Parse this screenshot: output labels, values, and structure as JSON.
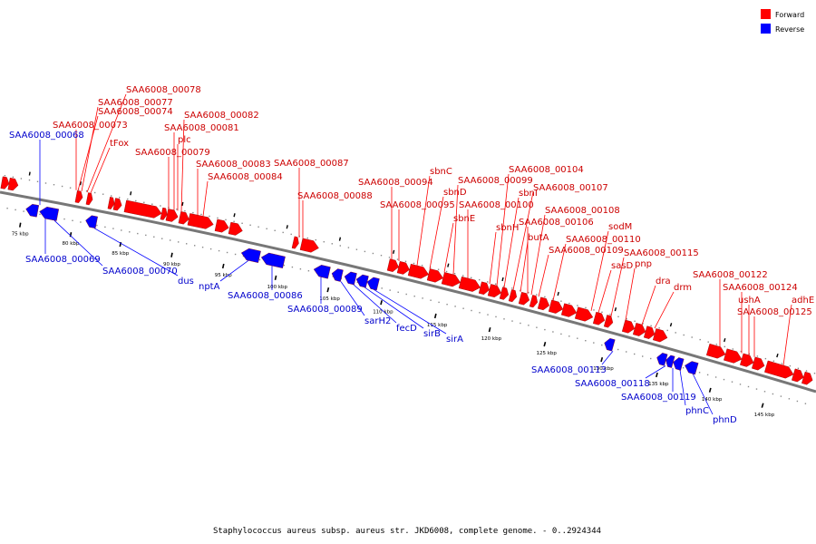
{
  "legend": [
    {
      "label": "Forward",
      "color": "#ff0000"
    },
    {
      "label": "Reverse",
      "color": "#0000ff"
    }
  ],
  "caption": "Staphylococcus aureus subsp. aureus str. JKD6008, complete genome. - 0..2924344",
  "colors": {
    "forward": "#ff0000",
    "reverse": "#0000ff",
    "forward_text": "#cc0000",
    "reverse_text": "#0000cc",
    "backbone": "#777777"
  },
  "ticks": [
    "75 kbp",
    "80 kbp",
    "85 kbp",
    "90 kbp",
    "95 kbp",
    "100 kbp",
    "105 kbp",
    "110 kbp",
    "115 kbp",
    "120 kbp",
    "125 kbp",
    "130 kbp",
    "135 kbp",
    "140 kbp",
    "145 kbp"
  ],
  "forward_genes": [
    "SAA6008_00078",
    "SAA6008_00077",
    "SAA6008_00074",
    "SAA6008_00073",
    "tFox",
    "SAA6008_00082",
    "SAA6008_00081",
    "plc",
    "SAA6008_00079",
    "SAA6008_00083",
    "SAA6008_00084",
    "SAA6008_00087",
    "SAA6008_00088",
    "SAA6008_00094",
    "SAA6008_00095",
    "sbnC",
    "sbnD",
    "sbnE",
    "SAA6008_00099",
    "SAA6008_00100",
    "SAA6008_00104",
    "sbnI",
    "sbnH",
    "SAA6008_00107",
    "SAA6008_00108",
    "butA",
    "SAA6008_00106",
    "sodM",
    "SAA6008_00110",
    "SAA6008_00109",
    "SAA6008_00115",
    "sasD",
    "pnp",
    "dra",
    "drm",
    "SAA6008_00122",
    "SAA6008_00124",
    "ushA",
    "SAA6008_00125",
    "adhE"
  ],
  "reverse_genes": [
    "SAA6008_00068",
    "SAA6008_00069",
    "SAA6008_00070",
    "dus",
    "nptA",
    "SAA6008_00086",
    "SAA6008_00089",
    "sarH2",
    "fecD",
    "sirB",
    "sirA",
    "SAA6008_00113",
    "SAA6008_00118",
    "SAA6008_00119",
    "phnC",
    "phnD"
  ]
}
